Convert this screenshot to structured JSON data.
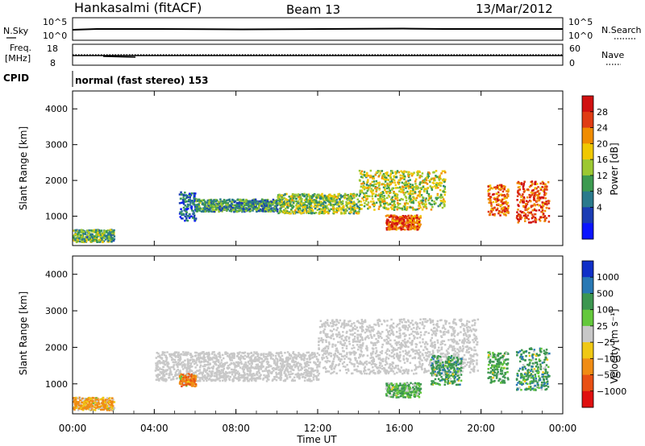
{
  "header": {
    "station": "Hankasalmi (fitACF)",
    "beam": "Beam 13",
    "date": "13/Mar/2012"
  },
  "noise_panel": {
    "left_label": "N.Sky",
    "right_label": "N.Search",
    "left_ticks": [
      "10^5",
      "10^0"
    ],
    "right_ticks": [
      "10^5",
      "10^0"
    ]
  },
  "freq_panel": {
    "left_label_line1": "Freq.",
    "left_label_line2": "[MHz]",
    "right_label": "Nave",
    "left_ticks": [
      "18",
      "8"
    ],
    "right_ticks": [
      "60",
      "0"
    ]
  },
  "cpid": {
    "label": "CPID",
    "text": "normal (fast stereo) 153"
  },
  "x_axis": {
    "label": "Time UT",
    "ticks": [
      "00:00",
      "04:00",
      "08:00",
      "12:00",
      "16:00",
      "20:00",
      "00:00"
    ]
  },
  "colors": {
    "scale_low": "#1030c8",
    "scale_mid": "#f0a000",
    "scale_high": "#e01010",
    "ground_scatter": "#c8c8c8"
  },
  "chart_data": [
    {
      "type": "heatmap",
      "panel": "power",
      "ylabel": "Slant Range [km]",
      "x_unit": "hours UT",
      "ylim": [
        180,
        4500
      ],
      "yticks": [
        "1000",
        "2000",
        "3000",
        "4000"
      ],
      "colorbar_label": "Power [dB]",
      "colorbar_ticks": [
        "4",
        "8",
        "12",
        "16",
        "20",
        "24",
        "28"
      ],
      "colorbar_range": [
        0,
        30
      ],
      "colorbar_colors": [
        "#0a14ff",
        "#1a3cb4",
        "#2a7a8c",
        "#3c9a50",
        "#9cc832",
        "#f0c800",
        "#f08c00",
        "#e03c14",
        "#d01010"
      ],
      "echo_regions": [
        {
          "t": [
            5.2,
            6.0
          ],
          "range": [
            900,
            1700
          ],
          "power": 6
        },
        {
          "t": [
            6.0,
            10.0
          ],
          "range": [
            1150,
            1500
          ],
          "power": 10
        },
        {
          "t": [
            10.0,
            14.0
          ],
          "range": [
            1100,
            1650
          ],
          "power": 14
        },
        {
          "t": [
            14.0,
            18.2
          ],
          "range": [
            1200,
            2300
          ],
          "power": 16
        },
        {
          "t": [
            15.3,
            17.0
          ],
          "range": [
            650,
            1050
          ],
          "power": 26
        },
        {
          "t": [
            20.3,
            21.3
          ],
          "range": [
            1050,
            1900
          ],
          "power": 24
        },
        {
          "t": [
            21.7,
            23.3
          ],
          "range": [
            850,
            2000
          ],
          "power": 27
        },
        {
          "t": [
            0.0,
            2.0
          ],
          "range": [
            300,
            650
          ],
          "power": 12
        }
      ]
    },
    {
      "type": "heatmap",
      "panel": "velocity",
      "ylabel": "Slant Range [km]",
      "x_unit": "hours UT",
      "ylim": [
        180,
        4500
      ],
      "yticks": [
        "1000",
        "2000",
        "3000",
        "4000"
      ],
      "colorbar_label": "Velocity [m s⁻¹]",
      "colorbar_ticks": [
        "1000",
        "500",
        "100",
        "25",
        "−25",
        "−100",
        "−500",
        "−1000"
      ],
      "colorbar_colors": [
        "#1030c8",
        "#2878b4",
        "#3c9650",
        "#64c83c",
        "#c8c8c8",
        "#f0c814",
        "#f08c14",
        "#e85014",
        "#e01010"
      ],
      "echo_regions": [
        {
          "t": [
            4.0,
            12.0
          ],
          "range": [
            1100,
            1900
          ],
          "velocity": "ground"
        },
        {
          "t": [
            12.0,
            19.8
          ],
          "range": [
            1300,
            2800
          ],
          "velocity": "ground"
        },
        {
          "t": [
            15.3,
            17.0
          ],
          "range": [
            650,
            1050
          ],
          "velocity": 120
        },
        {
          "t": [
            17.5,
            19.0
          ],
          "range": [
            1000,
            1800
          ],
          "velocity": 250
        },
        {
          "t": [
            20.3,
            21.3
          ],
          "range": [
            1050,
            1900
          ],
          "velocity": 200
        },
        {
          "t": [
            21.7,
            23.3
          ],
          "range": [
            850,
            2000
          ],
          "velocity": 300
        },
        {
          "t": [
            5.2,
            6.0
          ],
          "range": [
            950,
            1300
          ],
          "velocity": -300
        },
        {
          "t": [
            0.0,
            2.0
          ],
          "range": [
            300,
            650
          ],
          "velocity": -150
        }
      ]
    }
  ]
}
